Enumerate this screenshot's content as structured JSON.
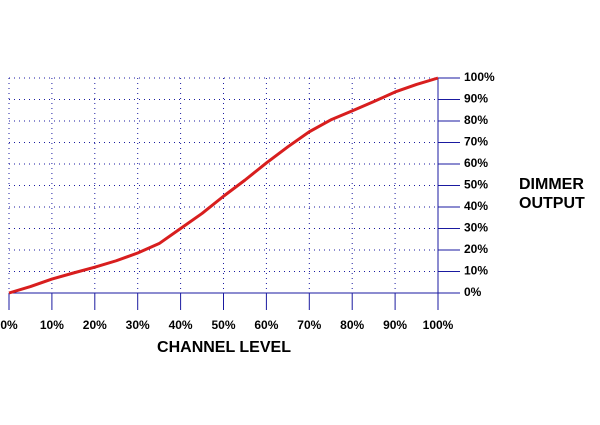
{
  "chart_data": {
    "type": "line",
    "x_label": "CHANNEL LEVEL",
    "y_label_lines": [
      "DIMMER",
      "OUTPUT"
    ],
    "x": [
      0,
      5,
      10,
      15,
      20,
      25,
      30,
      35,
      40,
      45,
      50,
      55,
      60,
      65,
      70,
      75,
      80,
      85,
      90,
      95,
      100
    ],
    "series": [
      {
        "color": "#d81e1e",
        "values": [
          0,
          3,
          6.5,
          9.3,
          12,
          15,
          18.6,
          23,
          30,
          37,
          45,
          52.5,
          60.5,
          68,
          75,
          80.5,
          84.7,
          89,
          93.5,
          97,
          100
        ]
      }
    ],
    "xlim": [
      0,
      100
    ],
    "ylim": [
      0,
      100
    ],
    "xticks": [
      {
        "value": 0,
        "label": "0%"
      },
      {
        "value": 10,
        "label": "10%"
      },
      {
        "value": 20,
        "label": "20%"
      },
      {
        "value": 30,
        "label": "30%"
      },
      {
        "value": 40,
        "label": "40%"
      },
      {
        "value": 50,
        "label": "50%"
      },
      {
        "value": 60,
        "label": "60%"
      },
      {
        "value": 70,
        "label": "70%"
      },
      {
        "value": 80,
        "label": "80%"
      },
      {
        "value": 90,
        "label": "90%"
      },
      {
        "value": 100,
        "label": "100%"
      }
    ],
    "yticks": [
      {
        "value": 0,
        "label": "0%"
      },
      {
        "value": 10,
        "label": "10%"
      },
      {
        "value": 20,
        "label": "20%"
      },
      {
        "value": 30,
        "label": "30%"
      },
      {
        "value": 40,
        "label": "40%"
      },
      {
        "value": 50,
        "label": "50%"
      },
      {
        "value": 60,
        "label": "60%"
      },
      {
        "value": 70,
        "label": "70%"
      },
      {
        "value": 80,
        "label": "80%"
      },
      {
        "value": 90,
        "label": "90%"
      },
      {
        "value": 100,
        "label": "100%"
      }
    ],
    "grid": true,
    "axis_color": "#1a1aa0"
  }
}
